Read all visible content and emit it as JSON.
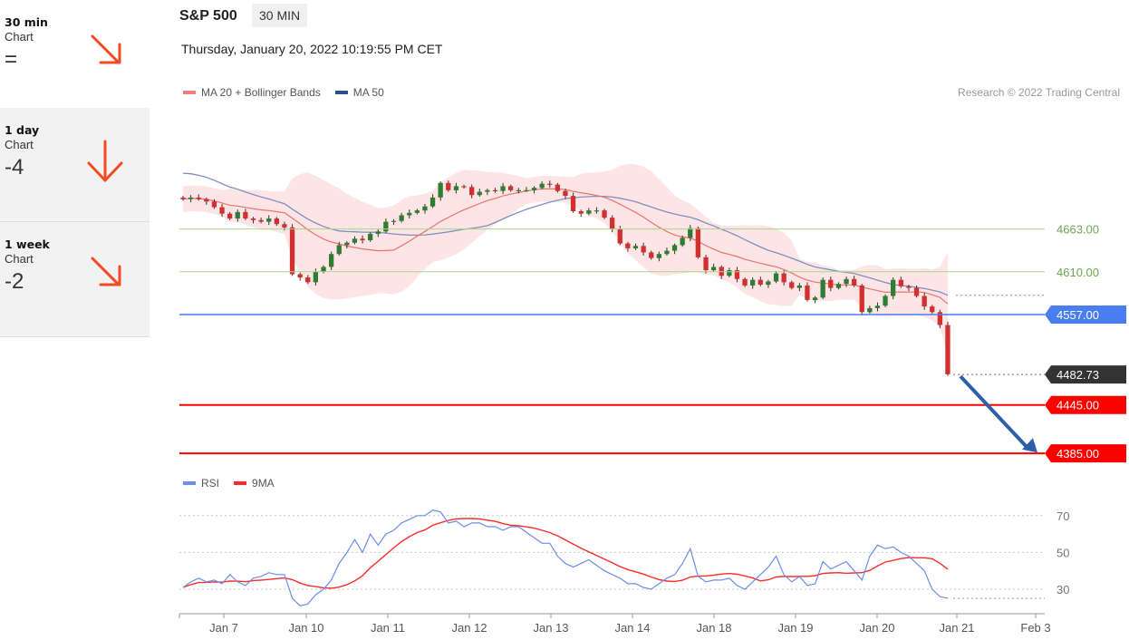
{
  "terms": [
    {
      "title": "30 min",
      "sub": "Chart",
      "score": "=",
      "arrow_color": "#f44a22"
    },
    {
      "title": "1 day",
      "sub": "Chart",
      "score": "-4",
      "arrow_color": "#f44a22"
    },
    {
      "title": "1 week",
      "sub": "Chart",
      "score": "-2",
      "arrow_color": "#f44a22"
    }
  ],
  "header": {
    "instrument": "S&P 500",
    "timeframe": "30 MIN",
    "datetime": "Thursday, January 20, 2022 10:19:55 PM CET"
  },
  "legend_main": {
    "ma20": "MA 20 + Bollinger Bands",
    "ma50": "MA 50"
  },
  "legend_rsi": {
    "rsi": "RSI",
    "ma9": "9MA"
  },
  "credit": "Research © 2022 Trading Central",
  "colors": {
    "up": "#2e7d32",
    "down": "#d32f2f",
    "band": "#fde0e0",
    "ma20": "#f07070",
    "ma50": "#8090c0",
    "support": "#ff0000",
    "pivot": "#4a7df0",
    "resistance": "#8bc34a",
    "last": "#333333",
    "arrow": "#2f5fa8",
    "rsi": "#6c8ee8",
    "rsi_ma": "#ff2a2a"
  },
  "chart_data": {
    "type": "candlestick",
    "x_ticks": [
      "Jan 7",
      "Jan 10",
      "Jan 11",
      "Jan 12",
      "Jan 13",
      "Jan 14",
      "Jan 18",
      "Jan 19",
      "Jan 20",
      "Jan 21",
      "Feb 3"
    ],
    "levels": {
      "resistance": [
        "4663.00",
        "4610.00"
      ],
      "pivot": "4557.00",
      "last": "4482.73",
      "support": [
        "4445.00",
        "4385.00"
      ]
    },
    "ylim": [
      4385,
      4790
    ],
    "close": [
      4700,
      4702,
      4700,
      4697,
      4690,
      4682,
      4676,
      4684,
      4676,
      4674,
      4672,
      4676,
      4669,
      4665,
      4607,
      4603,
      4597,
      4610,
      4616,
      4632,
      4643,
      4646,
      4651,
      4649,
      4657,
      4660,
      4672,
      4673,
      4680,
      4683,
      4686,
      4691,
      4702,
      4720,
      4711,
      4716,
      4715,
      4705,
      4709,
      4711,
      4710,
      4716,
      4711,
      4711,
      4711,
      4714,
      4719,
      4718,
      4710,
      4704,
      4685,
      4682,
      4686,
      4686,
      4677,
      4663,
      4645,
      4639,
      4642,
      4634,
      4627,
      4632,
      4636,
      4643,
      4652,
      4664,
      4628,
      4612,
      4616,
      4605,
      4612,
      4601,
      4593,
      4600,
      4594,
      4598,
      4608,
      4597,
      4590,
      4593,
      4575,
      4578,
      4600,
      4590,
      4595,
      4601,
      4593,
      4560,
      4565,
      4568,
      4580,
      4600,
      4592,
      4590,
      4580,
      4567,
      4560,
      4544,
      4483
    ],
    "rsi_ylim": [
      20,
      80
    ],
    "rsi_ticks": [
      "70",
      "50",
      "30"
    ],
    "rsi": [
      31,
      34,
      36,
      34,
      35,
      33,
      38,
      34,
      32,
      36,
      37,
      39,
      38,
      38,
      25,
      21,
      22,
      27,
      30,
      35,
      44,
      50,
      57,
      50,
      60,
      54,
      60,
      62,
      66,
      68,
      70,
      70,
      73,
      72,
      66,
      67,
      64,
      66,
      66,
      64,
      64,
      62,
      64,
      64,
      61,
      58,
      55,
      55,
      48,
      44,
      42,
      44,
      46,
      43,
      40,
      38,
      36,
      33,
      33,
      31,
      30,
      33,
      36,
      38,
      44,
      52,
      37,
      34,
      35,
      35,
      36,
      32,
      30,
      34,
      38,
      42,
      48,
      38,
      34,
      37,
      32,
      33,
      45,
      41,
      43,
      45,
      40,
      35,
      48,
      54,
      52,
      53,
      50,
      48,
      44,
      40,
      30,
      26,
      25
    ]
  }
}
